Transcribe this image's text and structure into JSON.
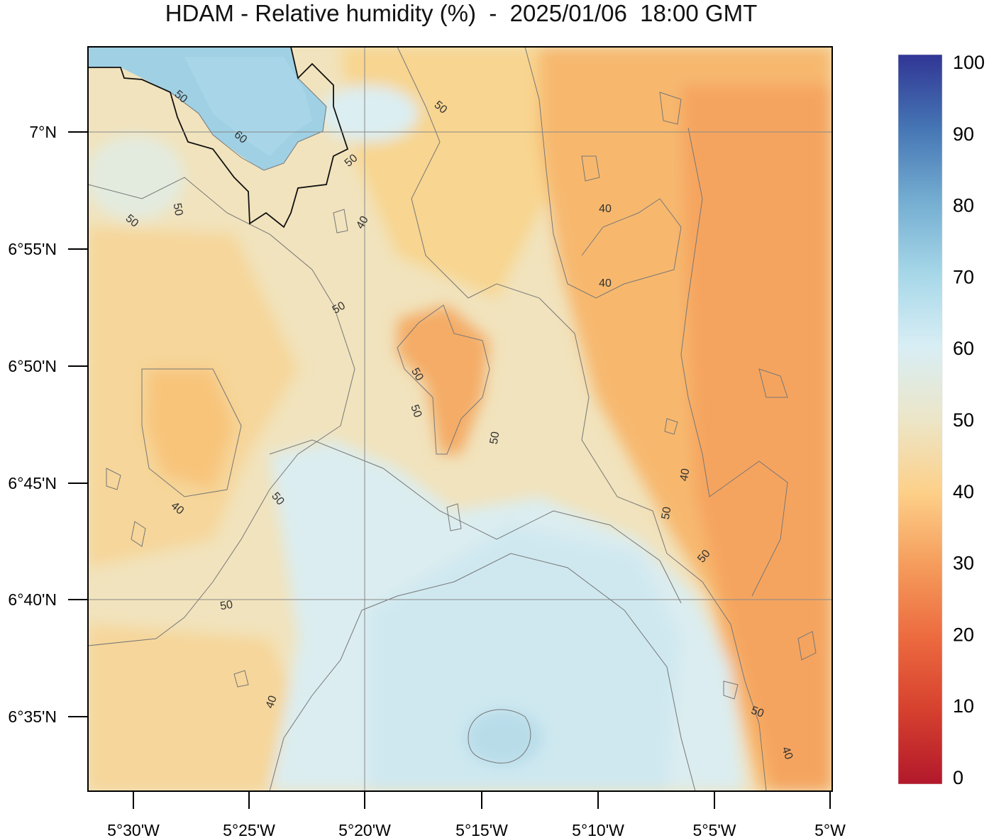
{
  "title": "HDAM - Relative humidity (%)  -  2025/01/06  18:00 GMT",
  "map": {
    "lat_labels": [
      "7°N",
      "6°55'N",
      "6°50'N",
      "6°45'N",
      "6°40'N",
      "6°35'N"
    ],
    "lon_labels": [
      "5°30'W",
      "5°25'W",
      "5°20'W",
      "5°15'W",
      "5°10'W",
      "5°5'W",
      "5°W"
    ],
    "contour_labels": [
      "50",
      "60",
      "50",
      "50",
      "50",
      "50",
      "40",
      "40",
      "50",
      "40",
      "50",
      "50",
      "50",
      "50",
      "40",
      "50",
      "40",
      "50",
      "50",
      "40",
      "50",
      "40"
    ]
  },
  "colorbar": {
    "ticks": [
      "100",
      "90",
      "80",
      "70",
      "60",
      "50",
      "40",
      "30",
      "20",
      "10",
      "0"
    ],
    "colors": {
      "c0": "#b2182b",
      "c10": "#d6402e",
      "c20": "#ec6a3f",
      "c30": "#f59c5c",
      "c40": "#fdd089",
      "c50": "#ece6c8",
      "c60": "#d8eef5",
      "c70": "#a6d7e8",
      "c80": "#74add1",
      "c90": "#4575b4",
      "c100": "#313695"
    }
  }
}
